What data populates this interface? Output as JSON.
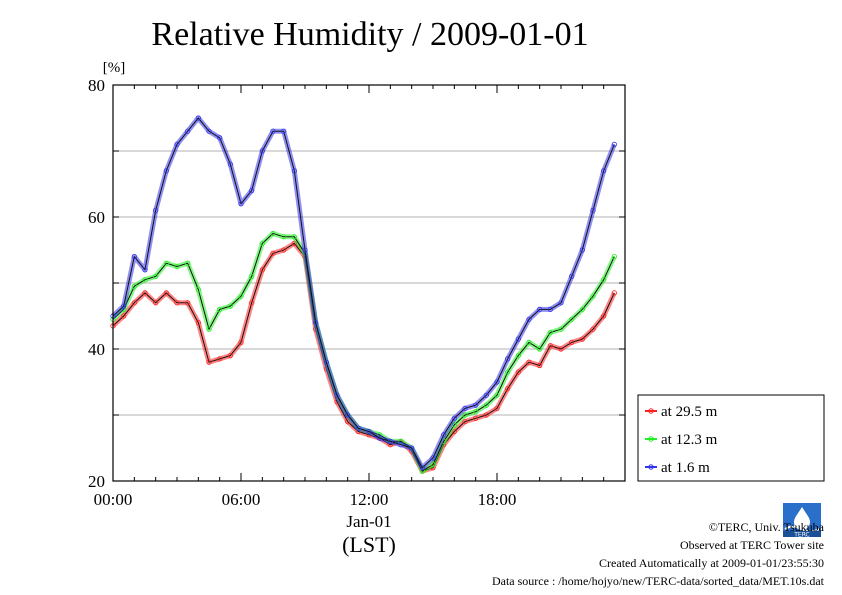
{
  "chart_data": {
    "type": "line",
    "title": "Relative Humidity / 2009-01-01",
    "ylabel": "[%]",
    "xlabel_date": "Jan-01",
    "xlabel_unit": "(LST)",
    "xlim": [
      0,
      24
    ],
    "ylim": [
      20,
      80
    ],
    "xticks": [
      {
        "value": 0,
        "label": "00:00"
      },
      {
        "value": 6,
        "label": "06:00"
      },
      {
        "value": 12,
        "label": "12:00"
      },
      {
        "value": 18,
        "label": "18:00"
      }
    ],
    "yticks": [
      {
        "value": 20,
        "label": "20"
      },
      {
        "value": 40,
        "label": "40"
      },
      {
        "value": 60,
        "label": "60"
      },
      {
        "value": 80,
        "label": "80"
      }
    ],
    "grid": true,
    "legend_position": "right",
    "series": [
      {
        "name": "at 29.5 m",
        "color": "#ff2020",
        "x": [
          0,
          0.5,
          1,
          1.5,
          2,
          2.5,
          3,
          3.5,
          4,
          4.5,
          5,
          5.5,
          6,
          6.5,
          7,
          7.5,
          8,
          8.5,
          9,
          9.5,
          10,
          10.5,
          11,
          11.5,
          12,
          12.5,
          13,
          13.5,
          14,
          14.5,
          15,
          15.5,
          16,
          16.5,
          17,
          17.5,
          18,
          18.5,
          19,
          19.5,
          20,
          20.5,
          21,
          21.5,
          22,
          22.5,
          23,
          23.5
        ],
        "values": [
          43.5,
          45,
          47,
          48.5,
          47,
          48.5,
          47,
          47,
          44,
          38,
          38.5,
          39,
          41,
          47,
          52,
          54.5,
          55,
          56,
          54,
          43,
          37,
          32,
          29,
          27.5,
          27,
          26.5,
          25.5,
          26,
          24.5,
          21.5,
          22,
          25.5,
          27.5,
          29,
          29.5,
          30,
          31,
          34,
          36.5,
          38,
          37.5,
          40.5,
          40,
          41,
          41.5,
          43,
          45,
          48.5
        ]
      },
      {
        "name": "at 12.3 m",
        "color": "#22ee22",
        "x": [
          0,
          0.5,
          1,
          1.5,
          2,
          2.5,
          3,
          3.5,
          4,
          4.5,
          5,
          5.5,
          6,
          6.5,
          7,
          7.5,
          8,
          8.5,
          9,
          9.5,
          10,
          10.5,
          11,
          11.5,
          12,
          12.5,
          13,
          13.5,
          14,
          14.5,
          15,
          15.5,
          16,
          16.5,
          17,
          17.5,
          18,
          18.5,
          19,
          19.5,
          20,
          20.5,
          21,
          21.5,
          22,
          22.5,
          23,
          23.5
        ],
        "values": [
          44.5,
          46,
          49.5,
          50.5,
          51,
          53,
          52.5,
          53,
          49,
          43,
          46,
          46.5,
          48,
          51,
          56,
          57.5,
          57,
          57,
          54.5,
          44,
          38,
          33,
          30,
          28,
          27.5,
          27,
          26,
          26,
          25,
          21.5,
          22.5,
          26,
          28.5,
          30,
          30.5,
          31.5,
          33,
          36.5,
          39,
          41,
          40,
          42.5,
          43,
          44.5,
          46,
          48,
          50.5,
          54
        ]
      },
      {
        "name": "at 1.6 m",
        "color": "#3333ee",
        "x": [
          0,
          0.5,
          1,
          1.5,
          2,
          2.5,
          3,
          3.5,
          4,
          4.5,
          5,
          5.5,
          6,
          6.5,
          7,
          7.5,
          8,
          8.5,
          9,
          9.5,
          10,
          10.5,
          11,
          11.5,
          12,
          12.5,
          13,
          13.5,
          14,
          14.5,
          15,
          15.5,
          16,
          16.5,
          17,
          17.5,
          18,
          18.5,
          19,
          19.5,
          20,
          20.5,
          21,
          21.5,
          22,
          22.5,
          23,
          23.5
        ],
        "values": [
          45,
          46.5,
          54,
          52,
          61,
          67,
          71,
          73,
          75,
          73,
          72,
          68,
          62,
          64,
          70,
          73,
          73,
          67,
          55,
          44,
          38,
          33,
          30,
          28,
          27.5,
          26.5,
          26,
          25.5,
          25,
          22,
          23.5,
          27,
          29.5,
          31,
          31.5,
          33,
          35,
          38.5,
          41.5,
          44.5,
          46,
          46,
          47,
          51,
          55,
          61,
          67,
          71
        ]
      }
    ]
  },
  "footer": {
    "copyright": "©TERC, Univ. Tsukuba",
    "observed": "Observed at TERC Tower site",
    "created": "Created Automatically at 2009-01-01/23:55:30",
    "source": "Data source : /home/hojyo/new/TERC-data/sorted_data/MET.10s.dat"
  },
  "logo_icon": "terc-logo-icon"
}
